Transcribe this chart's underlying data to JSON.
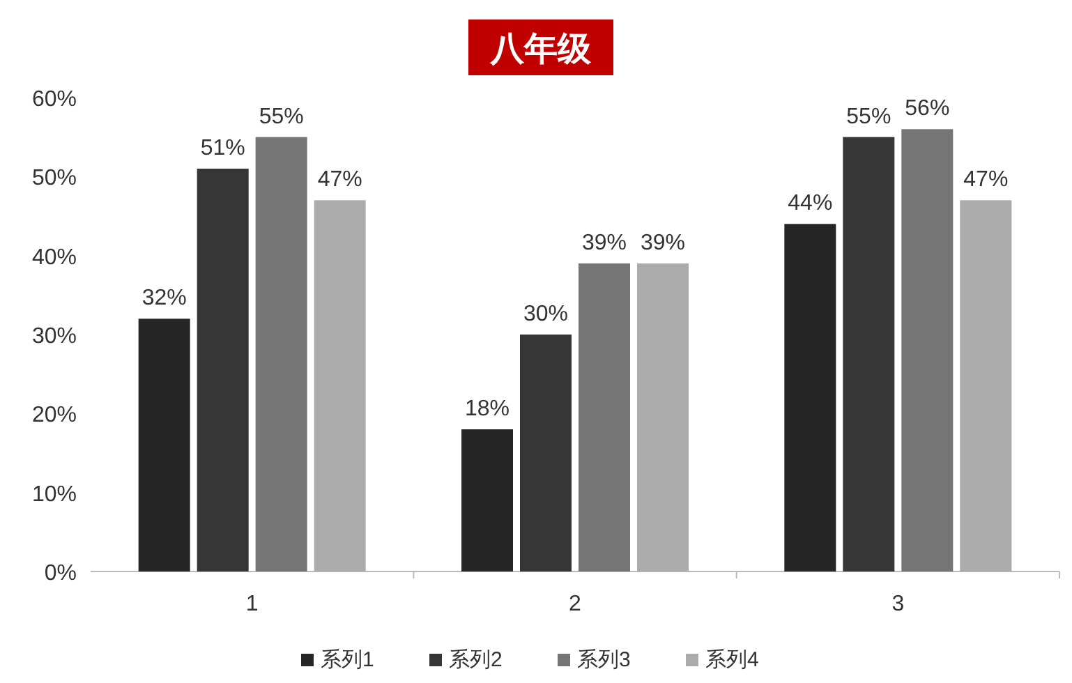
{
  "chart_data": {
    "type": "bar",
    "title": "八年级",
    "categories": [
      "1",
      "2",
      "3"
    ],
    "ylim": [
      0,
      60
    ],
    "yticks": [
      {
        "value": 0,
        "label": "0%"
      },
      {
        "value": 10,
        "label": "10%"
      },
      {
        "value": 20,
        "label": "20%"
      },
      {
        "value": 30,
        "label": "30%"
      },
      {
        "value": 40,
        "label": "40%"
      },
      {
        "value": 50,
        "label": "50%"
      },
      {
        "value": 60,
        "label": "60%"
      }
    ],
    "grid": false,
    "legend": "bottom",
    "series": [
      {
        "name": "系列1",
        "color": "#262626",
        "values": [
          32,
          18,
          44
        ],
        "value_labels": [
          "32%",
          "18%",
          "44%"
        ]
      },
      {
        "name": "系列2",
        "color": "#363636",
        "values": [
          51,
          30,
          55
        ],
        "value_labels": [
          "51%",
          "30%",
          "55%"
        ]
      },
      {
        "name": "系列3",
        "color": "#757575",
        "values": [
          55,
          39,
          56
        ],
        "value_labels": [
          "55%",
          "39%",
          "56%"
        ]
      },
      {
        "name": "系列4",
        "color": "#ababab",
        "values": [
          47,
          39,
          47
        ],
        "value_labels": [
          "47%",
          "39%",
          "47%"
        ]
      }
    ]
  }
}
